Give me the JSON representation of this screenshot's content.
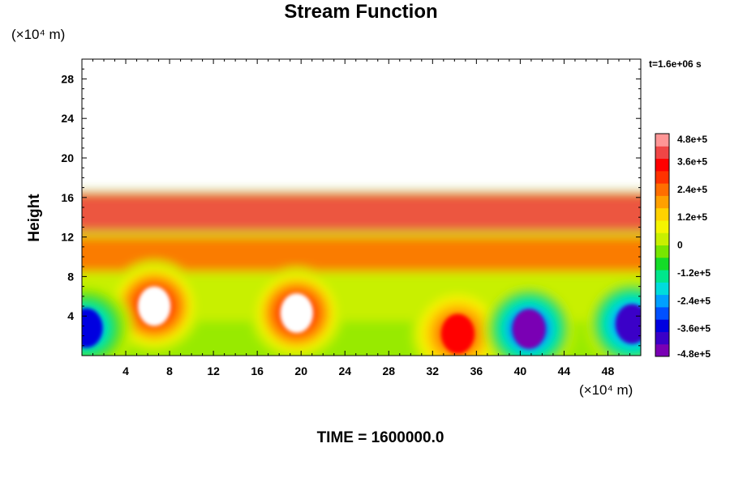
{
  "chart_data": {
    "type": "contour",
    "title": "Stream Function",
    "ylabel": "Height",
    "xlabel": "",
    "x_unit_label": "(×10⁴ m)",
    "y_unit_label": "(×10⁴ m)",
    "timestamp": "t=1.6e+06 s",
    "footer": "TIME = 1600000.0",
    "xlim": [
      0,
      51
    ],
    "ylim": [
      0,
      30
    ],
    "x_ticks": [
      4,
      8,
      12,
      16,
      20,
      24,
      28,
      32,
      36,
      40,
      44,
      48
    ],
    "y_ticks": [
      4,
      8,
      12,
      16,
      20,
      24,
      28
    ],
    "colorbar": {
      "min": -480000,
      "max": 480000,
      "labels": [
        "4.8e+5",
        "3.6e+5",
        "2.4e+5",
        "1.2e+5",
        "0",
        "-1.2e+5",
        "-2.4e+5",
        "-3.6e+5",
        "-4.8e+5"
      ],
      "label_values": [
        480000,
        360000,
        240000,
        120000,
        0,
        -120000,
        -240000,
        -360000,
        -480000
      ],
      "colors": [
        "#7a00b4",
        "#3a00c8",
        "#0000e0",
        "#0050ff",
        "#00a0ff",
        "#00dcdc",
        "#00e68c",
        "#14dc28",
        "#78e600",
        "#c8f000",
        "#f5f500",
        "#ffd200",
        "#ffa000",
        "#ff6e00",
        "#ff3200",
        "#ff0000",
        "#f04646",
        "#ff9696"
      ]
    },
    "features": [
      {
        "kind": "eddy",
        "sign": "positive",
        "x": 6.6,
        "y": 5.0,
        "strength": 480000
      },
      {
        "kind": "eddy",
        "sign": "positive",
        "x": 19.6,
        "y": 4.3,
        "strength": 480000
      },
      {
        "kind": "eddy",
        "sign": "positive",
        "x": 34.3,
        "y": 2.2,
        "strength": 360000
      },
      {
        "kind": "eddy",
        "sign": "negative",
        "x": 40.8,
        "y": 2.7,
        "strength": -480000
      },
      {
        "kind": "eddy",
        "sign": "negative",
        "x": 50.2,
        "y": 3.2,
        "strength": -420000
      },
      {
        "kind": "eddy",
        "sign": "negative",
        "x": 0.4,
        "y": 2.8,
        "strength": -360000
      },
      {
        "kind": "layer",
        "sign": "positive",
        "y_bottom": 12.5,
        "y_top": 16.5,
        "strength": 400000
      },
      {
        "kind": "layer",
        "sign": "positive",
        "y_bottom": 8.5,
        "y_top": 12.0,
        "strength": 240000
      }
    ]
  }
}
